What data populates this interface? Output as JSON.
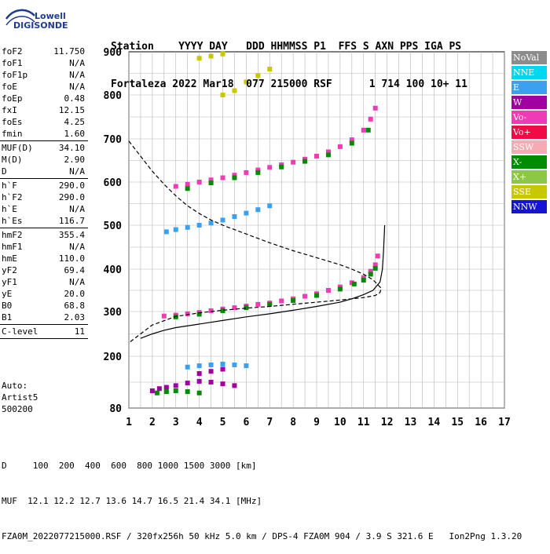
{
  "logo": {
    "line1": "Lowell",
    "line2": "DIGISONDE",
    "color": "#1e3c8c"
  },
  "header": {
    "row1": "Station    YYYY DAY   DDD HHMMSS P1  FFS S AXN PPS IGA PS",
    "row2": "Fortaleza 2022 Mar18  077 215000 RSF      1 714 100 10+ 11"
  },
  "params": [
    {
      "name": "foF2",
      "value": "11.750"
    },
    {
      "name": "foF1",
      "value": "N/A"
    },
    {
      "name": "foF1p",
      "value": "N/A"
    },
    {
      "name": "foE",
      "value": "N/A"
    },
    {
      "name": "foEp",
      "value": "0.48"
    },
    {
      "name": "fxI",
      "value": "12.15"
    },
    {
      "name": "foEs",
      "value": "4.25"
    },
    {
      "name": "fmin",
      "value": "1.60"
    },
    {
      "sep": true
    },
    {
      "name": "MUF(D)",
      "value": "34.10"
    },
    {
      "name": "M(D)",
      "value": "2.90"
    },
    {
      "name": "D",
      "value": "N/A"
    },
    {
      "sep": true
    },
    {
      "name": "h`F",
      "value": "290.0"
    },
    {
      "name": "h`F2",
      "value": "290.0"
    },
    {
      "name": "h`E",
      "value": "N/A"
    },
    {
      "name": "h`Es",
      "value": "116.7"
    },
    {
      "sep": true
    },
    {
      "name": "hmF2",
      "value": "355.4"
    },
    {
      "name": "hmF1",
      "value": "N/A"
    },
    {
      "name": "hmE",
      "value": "110.0"
    },
    {
      "name": "yF2",
      "value": "69.4"
    },
    {
      "name": "yF1",
      "value": "N/A"
    },
    {
      "name": "yE",
      "value": "20.0"
    },
    {
      "name": "B0",
      "value": "68.8"
    },
    {
      "name": "B1",
      "value": "2.03"
    },
    {
      "sep": true
    },
    {
      "name": "C-level",
      "value": "11"
    },
    {
      "sep": true
    }
  ],
  "auto": [
    "Auto:",
    "Artist5",
    "500200"
  ],
  "legend": [
    {
      "label": "NoVal",
      "color": "#8c8c8c"
    },
    {
      "label": "NNE",
      "color": "#00d7f0"
    },
    {
      "label": "E",
      "color": "#3ca0f0"
    },
    {
      "label": "W",
      "color": "#a000a0"
    },
    {
      "label": "Vo-",
      "color": "#f03cb4"
    },
    {
      "label": "Vo+",
      "color": "#f00a46"
    },
    {
      "label": "SSW",
      "color": "#f5aab4"
    },
    {
      "label": "X-",
      "color": "#008c00"
    },
    {
      "label": "X+",
      "color": "#8cc846"
    },
    {
      "label": "SSE",
      "color": "#c8c800"
    },
    {
      "label": "NNW",
      "color": "#1414d2"
    }
  ],
  "footer": [
    "D     100  200  400  600  800 1000 1500 3000 [km]",
    "MUF  12.1 12.2 12.7 13.6 14.7 16.5 21.4 34.1 [MHz]",
    "FZA0M_2022077215000.RSF / 320fx256h 50 kHz 5.0 km / DPS-4 FZA0M 904 / 3.9 S 321.6 E   Ion2Png 1.3.20"
  ],
  "chart_data": {
    "type": "scatter",
    "title": "",
    "xlabel": "",
    "ylabel": "",
    "xlim": [
      1,
      17
    ],
    "ylim": [
      80,
      900
    ],
    "xticks": [
      1,
      2,
      3,
      4,
      5,
      6,
      7,
      8,
      9,
      10,
      11,
      12,
      13,
      14,
      15,
      16,
      17
    ],
    "yticks": [
      80,
      200,
      300,
      400,
      500,
      600,
      700,
      800,
      900
    ],
    "grid": true,
    "series": [
      {
        "color": "#f03cb4",
        "line": false,
        "points": [
          [
            2.5,
            290
          ],
          [
            3,
            292
          ],
          [
            3.5,
            295
          ],
          [
            4,
            298
          ],
          [
            4.5,
            302
          ],
          [
            5,
            306
          ],
          [
            5.5,
            309
          ],
          [
            6,
            313
          ],
          [
            6.5,
            317
          ],
          [
            7,
            320
          ],
          [
            7.5,
            325
          ],
          [
            8,
            330
          ],
          [
            8.5,
            336
          ],
          [
            9,
            342
          ],
          [
            9.5,
            350
          ],
          [
            10,
            358
          ],
          [
            10.5,
            368
          ],
          [
            11,
            380
          ],
          [
            11.3,
            395
          ],
          [
            11.5,
            410
          ],
          [
            11.6,
            430
          ]
        ]
      },
      {
        "color": "#008c00",
        "line": false,
        "points": [
          [
            3,
            288
          ],
          [
            4,
            294
          ],
          [
            5,
            302
          ],
          [
            6,
            309
          ],
          [
            7,
            317
          ],
          [
            8,
            326
          ],
          [
            9,
            338
          ],
          [
            10,
            353
          ],
          [
            10.6,
            365
          ],
          [
            11,
            374
          ],
          [
            11.3,
            388
          ],
          [
            11.5,
            402
          ]
        ]
      },
      {
        "color": "#f03cb4",
        "line": false,
        "points": [
          [
            3,
            590
          ],
          [
            3.5,
            595
          ],
          [
            4,
            600
          ],
          [
            4.5,
            605
          ],
          [
            5,
            610
          ],
          [
            5.5,
            616
          ],
          [
            6,
            622
          ],
          [
            6.5,
            628
          ],
          [
            7,
            634
          ],
          [
            7.5,
            640
          ],
          [
            8,
            646
          ],
          [
            8.5,
            653
          ],
          [
            9,
            660
          ],
          [
            9.5,
            670
          ],
          [
            10,
            682
          ],
          [
            10.5,
            698
          ],
          [
            11,
            720
          ],
          [
            11.3,
            745
          ],
          [
            11.5,
            770
          ]
        ]
      },
      {
        "color": "#008c00",
        "line": false,
        "points": [
          [
            3.5,
            585
          ],
          [
            4.5,
            598
          ],
          [
            5.5,
            610
          ],
          [
            6.5,
            622
          ],
          [
            7.5,
            635
          ],
          [
            8.5,
            648
          ],
          [
            9.5,
            663
          ],
          [
            10.5,
            690
          ],
          [
            11.2,
            720
          ]
        ]
      },
      {
        "color": "#3ca0f0",
        "line": false,
        "points": [
          [
            2.6,
            485
          ],
          [
            3,
            490
          ],
          [
            3.5,
            495
          ],
          [
            4,
            500
          ],
          [
            4.5,
            505
          ],
          [
            5,
            512
          ],
          [
            5.5,
            520
          ],
          [
            6,
            528
          ],
          [
            6.5,
            536
          ],
          [
            7,
            545
          ]
        ]
      },
      {
        "color": "#a000a0",
        "line": false,
        "points": [
          [
            2,
            120
          ],
          [
            2.3,
            125
          ],
          [
            2.6,
            128
          ],
          [
            3,
            132
          ],
          [
            3.5,
            138
          ],
          [
            4,
            142
          ],
          [
            4.5,
            140
          ],
          [
            5,
            136
          ],
          [
            5.5,
            132
          ],
          [
            4,
            160
          ],
          [
            4.5,
            165
          ],
          [
            5,
            170
          ]
        ]
      },
      {
        "color": "#3ca0f0",
        "line": false,
        "points": [
          [
            3.5,
            175
          ],
          [
            4,
            178
          ],
          [
            4.5,
            180
          ],
          [
            5,
            182
          ],
          [
            5.5,
            180
          ],
          [
            6,
            178
          ]
        ]
      },
      {
        "color": "#008c00",
        "line": false,
        "points": [
          [
            2.2,
            115
          ],
          [
            2.6,
            118
          ],
          [
            3,
            120
          ],
          [
            3.5,
            118
          ],
          [
            4,
            115
          ]
        ]
      },
      {
        "color": "#c8c800",
        "line": false,
        "points": [
          [
            4.5,
            890
          ],
          [
            5,
            895
          ],
          [
            4,
            885
          ],
          [
            5,
            800
          ],
          [
            5.5,
            810
          ],
          [
            6,
            830
          ],
          [
            6.5,
            845
          ],
          [
            7,
            860
          ]
        ]
      },
      {
        "color": "#000000",
        "line": "dashed",
        "points": [
          [
            1,
            695
          ],
          [
            1.5,
            660
          ],
          [
            2,
            625
          ],
          [
            2.5,
            595
          ],
          [
            3,
            568
          ],
          [
            3.5,
            545
          ],
          [
            4,
            527
          ],
          [
            4.5,
            512
          ],
          [
            5,
            500
          ],
          [
            6,
            480
          ],
          [
            7,
            460
          ],
          [
            8,
            442
          ],
          [
            9,
            426
          ],
          [
            10,
            410
          ],
          [
            10.5,
            400
          ],
          [
            11,
            388
          ],
          [
            11.4,
            375
          ],
          [
            11.75,
            355
          ],
          [
            11.7,
            345
          ],
          [
            11.5,
            338
          ],
          [
            11,
            333
          ],
          [
            10.5,
            330
          ],
          [
            10,
            327
          ],
          [
            9,
            322
          ],
          [
            8,
            317
          ],
          [
            7,
            312
          ],
          [
            6,
            308
          ],
          [
            5,
            303
          ],
          [
            4,
            297
          ],
          [
            3,
            289
          ],
          [
            2,
            270
          ],
          [
            1.5,
            250
          ],
          [
            1,
            230
          ]
        ]
      },
      {
        "color": "#000000",
        "line": "solid",
        "points": [
          [
            1.5,
            240
          ],
          [
            2,
            250
          ],
          [
            2.5,
            258
          ],
          [
            3,
            264
          ],
          [
            4,
            272
          ],
          [
            5,
            280
          ],
          [
            6,
            288
          ],
          [
            7,
            295
          ],
          [
            8,
            303
          ],
          [
            9,
            312
          ],
          [
            10,
            322
          ],
          [
            10.5,
            330
          ],
          [
            11,
            340
          ],
          [
            11.4,
            350
          ],
          [
            11.7,
            370
          ],
          [
            11.8,
            400
          ],
          [
            11.85,
            440
          ],
          [
            11.9,
            500
          ]
        ]
      }
    ]
  }
}
